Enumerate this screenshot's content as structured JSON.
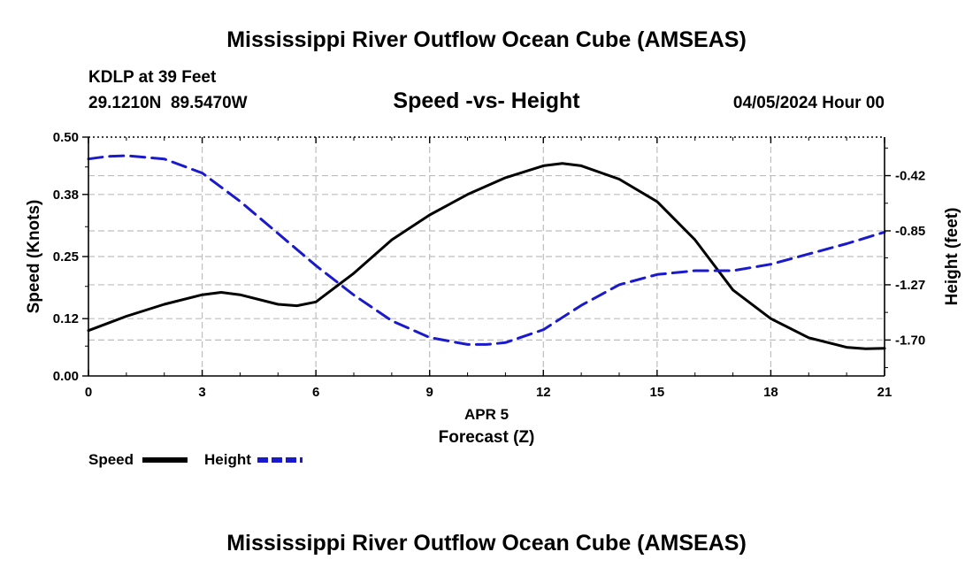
{
  "header": {
    "title": "Mississippi River Outflow Ocean Cube (AMSEAS)",
    "station": "KDLP at 39 Feet",
    "coords": "29.1210N  89.5470W",
    "subtitle": "Speed -vs- Height",
    "datetime": "04/05/2024 Hour 00"
  },
  "footer": {
    "title": "Mississippi River Outflow Ocean Cube (AMSEAS)"
  },
  "legend": {
    "speed_label": "Speed",
    "height_label": "Height"
  },
  "colors": {
    "speed": "#000000",
    "height": "#1a1acc",
    "grid": "#bdbdbd"
  },
  "chart_data": {
    "type": "line",
    "xlabel": "Forecast (Z)",
    "xdate_label": "APR 5",
    "xlim": [
      0,
      21
    ],
    "x_ticks": [
      0,
      3,
      6,
      9,
      12,
      15,
      18,
      21
    ],
    "ylabel_left": "Speed (Knots)",
    "ylim_left": [
      0,
      0.5
    ],
    "y_ticks_left": [
      "0.00",
      "0.12",
      "0.25",
      "0.38",
      "0.50"
    ],
    "ylabel_right": "Height (feet)",
    "ylim_right": [
      -1.98,
      -0.12
    ],
    "y_ticks_right": [
      "-0.42",
      "-0.85",
      "-1.27",
      "-1.70"
    ],
    "grid": true,
    "series": [
      {
        "name": "Speed",
        "axis": "left",
        "style": "solid",
        "x": [
          0,
          1,
          2,
          3,
          3.5,
          4,
          5,
          5.5,
          6,
          7,
          8,
          9,
          10,
          11,
          12,
          12.5,
          13,
          14,
          15,
          16,
          17,
          18,
          19,
          20,
          20.5,
          21
        ],
        "values": [
          0.095,
          0.125,
          0.15,
          0.17,
          0.175,
          0.17,
          0.15,
          0.147,
          0.155,
          0.215,
          0.285,
          0.337,
          0.38,
          0.415,
          0.44,
          0.445,
          0.44,
          0.412,
          0.365,
          0.285,
          0.18,
          0.12,
          0.08,
          0.06,
          0.057,
          0.058
        ]
      },
      {
        "name": "Height",
        "axis": "right",
        "style": "dashed",
        "x": [
          0,
          0.5,
          1,
          2,
          3,
          4,
          5,
          6,
          7,
          8,
          9,
          10,
          10.5,
          11,
          12,
          13,
          14,
          15,
          16,
          17,
          18,
          19,
          20,
          21
        ],
        "values": [
          -0.29,
          -0.27,
          -0.265,
          -0.29,
          -0.4,
          -0.62,
          -0.87,
          -1.12,
          -1.35,
          -1.55,
          -1.68,
          -1.735,
          -1.735,
          -1.72,
          -1.62,
          -1.43,
          -1.27,
          -1.19,
          -1.16,
          -1.16,
          -1.11,
          -1.03,
          -0.95,
          -0.86
        ]
      }
    ]
  }
}
